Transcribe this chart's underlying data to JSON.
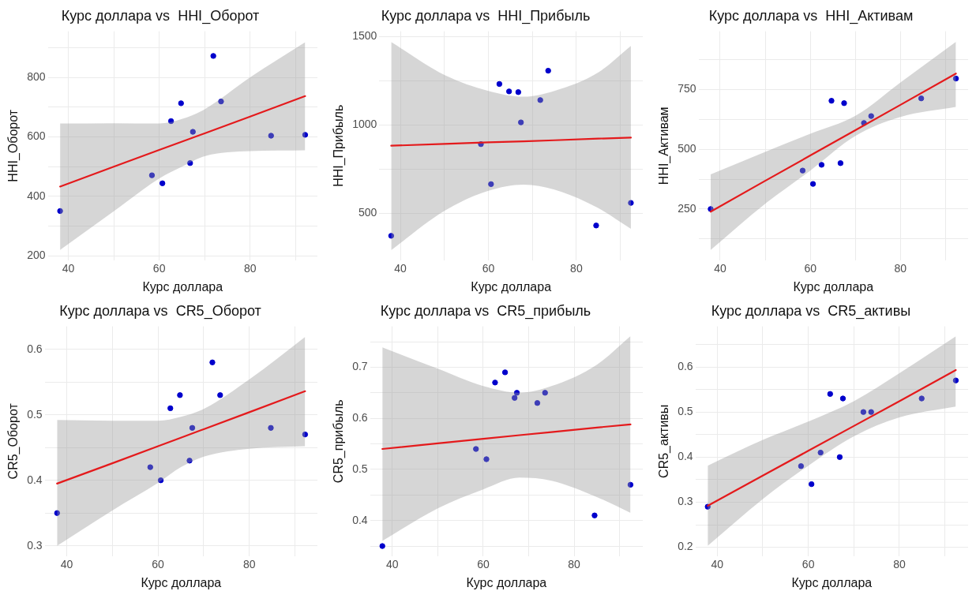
{
  "chart_data": [
    {
      "type": "scatter",
      "title": "Курс доллара vs  HHI_Оборот",
      "xlabel": "Курс доллара",
      "ylabel": "HHI_Оборот",
      "grid": true,
      "x": [
        38.2,
        58.4,
        60.7,
        62.6,
        64.8,
        66.8,
        67.4,
        71.9,
        73.6,
        84.6,
        92.1
      ],
      "xlim": [
        35.5,
        94.8
      ],
      "xticks": [
        40,
        {
          "value": 50,
          "label": null
        },
        60,
        {
          "value": 70,
          "label": null
        },
        80,
        {
          "value": 90,
          "label": null
        }
      ],
      "ylim": [
        185,
        955
      ],
      "yticks": [
        200,
        {
          "value": 300,
          "label": null
        },
        400,
        {
          "value": 500,
          "label": null
        },
        600,
        {
          "value": 700,
          "label": null
        },
        800,
        {
          "value": 900,
          "label": null
        }
      ],
      "series": [
        {
          "marker": "circle",
          "color": "#0000cc",
          "values": [
            351,
            471,
            444,
            653,
            713,
            512,
            617,
            872,
            719,
            604,
            607
          ]
        },
        {
          "type": "line",
          "color": "#e41a1c",
          "line_style": "solid",
          "x": [
            38.2,
            50,
            60,
            65,
            70,
            80,
            92.1
          ],
          "values": [
            433,
            500,
            556,
            584,
            612,
            668,
            737
          ],
          "lower": [
            220,
            350,
            460,
            500,
            535,
            552,
            555
          ],
          "upper": [
            645,
            646,
            645,
            660,
            693,
            800,
            918
          ]
        }
      ]
    },
    {
      "type": "scatter",
      "title": "Курс доллара vs  HHI_Прибыль",
      "xlabel": "Курс доллара",
      "ylabel": "HHI_Прибыль",
      "grid": true,
      "x": [
        37.9,
        58.3,
        60.6,
        62.5,
        64.7,
        66.8,
        67.4,
        71.8,
        73.6,
        84.5,
        92.4
      ],
      "xlim": [
        35.2,
        95.1
      ],
      "xticks": [
        40,
        {
          "value": 50,
          "label": null
        },
        60,
        {
          "value": 70,
          "label": null
        },
        80,
        {
          "value": 90,
          "label": null
        }
      ],
      "ylim": [
        235,
        1530
      ],
      "yticks": [
        500,
        {
          "value": 750,
          "label": null
        },
        1000,
        {
          "value": 1250,
          "label": null
        },
        1500
      ],
      "series": [
        {
          "marker": "circle",
          "color": "#0000cc",
          "values": [
            374,
            892,
            666,
            1232,
            1190,
            1186,
            1015,
            1141,
            1307,
            432,
            560
          ]
        },
        {
          "type": "line",
          "color": "#e41a1c",
          "line_style": "solid",
          "x": [
            37.9,
            50,
            60,
            68,
            75,
            85,
            92.4
          ],
          "values": [
            883,
            893,
            902,
            908,
            914,
            923,
            929
          ],
          "lower": [
            293,
            515,
            628,
            663,
            635,
            530,
            413
          ],
          "upper": [
            1469,
            1283,
            1193,
            1160,
            1193,
            1298,
            1447
          ]
        }
      ]
    },
    {
      "type": "scatter",
      "title": "Курс доллара vs  HHI_Активам",
      "xlabel": "Курс доллара",
      "ylabel": "HHI_Активам",
      "grid": true,
      "x": [
        37.9,
        58.3,
        60.6,
        62.5,
        64.7,
        66.7,
        67.5,
        71.9,
        73.5,
        84.6,
        92.3
      ],
      "xlim": [
        35.2,
        95.0
      ],
      "xticks": [
        40,
        {
          "value": 50,
          "label": null
        },
        60,
        {
          "value": 70,
          "label": null
        },
        80,
        {
          "value": 90,
          "label": null
        }
      ],
      "ylim": [
        35,
        994
      ],
      "yticks": [
        {
          "value": 125,
          "label": null
        },
        250,
        {
          "value": 375,
          "label": null
        },
        500,
        {
          "value": 625,
          "label": null
        },
        750,
        {
          "value": 875,
          "label": null
        }
      ],
      "series": [
        {
          "marker": "circle",
          "color": "#0000cc",
          "values": [
            250,
            411,
            355,
            435,
            703,
            442,
            693,
            610,
            639,
            713,
            796
          ]
        },
        {
          "type": "line",
          "color": "#e41a1c",
          "line_style": "solid",
          "x": [
            37.9,
            50,
            60,
            70,
            80,
            92.3
          ],
          "values": [
            239,
            368,
            474,
            580,
            686,
            817
          ],
          "lower": [
            79,
            272,
            411,
            556,
            635,
            677
          ],
          "upper": [
            395,
            489,
            565,
            640,
            780,
            950
          ]
        }
      ]
    },
    {
      "type": "scatter",
      "title": "Курс доллара vs  CR5_Оборот",
      "xlabel": "Курс доллара",
      "ylabel": "CR5_Оборот",
      "grid": true,
      "x": [
        37.9,
        58.3,
        60.6,
        62.7,
        64.8,
        66.9,
        67.5,
        71.9,
        73.6,
        84.7,
        92.2
      ],
      "xlim": [
        35.2,
        94.9
      ],
      "xticks": [
        40,
        {
          "value": 50,
          "label": null
        },
        60,
        {
          "value": 70,
          "label": null
        },
        80,
        {
          "value": 90,
          "label": null
        }
      ],
      "ylim": [
        0.284,
        0.635
      ],
      "yticks": [
        0.3,
        {
          "value": 0.35,
          "label": null
        },
        0.4,
        {
          "value": 0.45,
          "label": null
        },
        0.5,
        {
          "value": 0.55,
          "label": null
        },
        0.6
      ],
      "series": [
        {
          "marker": "circle",
          "color": "#0000cc",
          "values": [
            0.35,
            0.42,
            0.4,
            0.51,
            0.53,
            0.43,
            0.48,
            0.58,
            0.53,
            0.48,
            0.47
          ]
        },
        {
          "type": "line",
          "color": "#e41a1c",
          "line_style": "solid",
          "x": [
            37.9,
            50,
            60,
            65,
            70,
            80,
            92.2
          ],
          "values": [
            0.395,
            0.426,
            0.452,
            0.465,
            0.478,
            0.504,
            0.536
          ],
          "lower": [
            0.3,
            0.354,
            0.396,
            0.42,
            0.436,
            0.448,
            0.452
          ],
          "upper": [
            0.492,
            0.491,
            0.491,
            0.497,
            0.509,
            0.554,
            0.619
          ]
        }
      ]
    },
    {
      "type": "scatter",
      "title": "Курс доллара vs  CR5_прибыль",
      "xlabel": "Курс доллара",
      "ylabel": "CR5_прибыль",
      "grid": true,
      "x": [
        37.8,
        58.4,
        60.7,
        62.6,
        64.8,
        66.9,
        67.4,
        71.9,
        73.6,
        84.5,
        92.4
      ],
      "xlim": [
        35.1,
        95.1
      ],
      "xticks": [
        40,
        {
          "value": 50,
          "label": null
        },
        60,
        {
          "value": 70,
          "label": null
        },
        80,
        {
          "value": 90,
          "label": null
        }
      ],
      "ylim": [
        0.33,
        0.78
      ],
      "yticks": [
        {
          "value": 0.35,
          "label": null
        },
        0.4,
        {
          "value": 0.45,
          "label": null
        },
        0.5,
        {
          "value": 0.55,
          "label": null
        },
        0.6,
        {
          "value": 0.65,
          "label": null
        },
        0.7,
        {
          "value": 0.75,
          "label": null
        }
      ],
      "series": [
        {
          "marker": "circle",
          "color": "#0000cc",
          "values": [
            0.35,
            0.54,
            0.52,
            0.67,
            0.69,
            0.64,
            0.65,
            0.63,
            0.65,
            0.41,
            0.47
          ]
        },
        {
          "type": "line",
          "color": "#e41a1c",
          "line_style": "solid",
          "x": [
            37.8,
            50,
            60,
            68,
            75,
            85,
            92.4
          ],
          "values": [
            0.54,
            0.551,
            0.56,
            0.567,
            0.573,
            0.582,
            0.588
          ],
          "lower": [
            0.36,
            0.424,
            0.461,
            0.484,
            0.478,
            0.446,
            0.415
          ],
          "upper": [
            0.739,
            0.697,
            0.663,
            0.65,
            0.663,
            0.705,
            0.761
          ]
        }
      ]
    },
    {
      "type": "scatter",
      "title": "Курс доллара vs  CR5_активы",
      "xlabel": "Курс доллара",
      "ylabel": "CR5_активы",
      "grid": true,
      "x": [
        37.9,
        58.4,
        60.7,
        62.7,
        64.8,
        66.9,
        67.6,
        72.1,
        73.8,
        84.9,
        92.4
      ],
      "xlim": [
        35.2,
        95.1
      ],
      "xticks": [
        40,
        {
          "value": 50,
          "label": null
        },
        60,
        {
          "value": 70,
          "label": null
        },
        80,
        {
          "value": 90,
          "label": null
        }
      ],
      "ylim": [
        0.18,
        0.69
      ],
      "yticks": [
        0.2,
        {
          "value": 0.25,
          "label": null
        },
        0.3,
        {
          "value": 0.35,
          "label": null
        },
        0.4,
        {
          "value": 0.45,
          "label": null
        },
        0.5,
        {
          "value": 0.55,
          "label": null
        },
        0.6,
        {
          "value": 0.65,
          "label": null
        }
      ],
      "series": [
        {
          "marker": "circle",
          "color": "#0000cc",
          "values": [
            0.29,
            0.38,
            0.34,
            0.41,
            0.54,
            0.4,
            0.53,
            0.5,
            0.5,
            0.53,
            0.57
          ]
        },
        {
          "type": "line",
          "color": "#e41a1c",
          "line_style": "solid",
          "x": [
            37.9,
            50,
            60,
            70,
            80,
            92.4
          ],
          "values": [
            0.292,
            0.359,
            0.414,
            0.469,
            0.524,
            0.593
          ],
          "lower": [
            0.203,
            0.307,
            0.381,
            0.446,
            0.488,
            0.512
          ],
          "upper": [
            0.381,
            0.438,
            0.479,
            0.524,
            0.586,
            0.668
          ]
        }
      ]
    }
  ]
}
